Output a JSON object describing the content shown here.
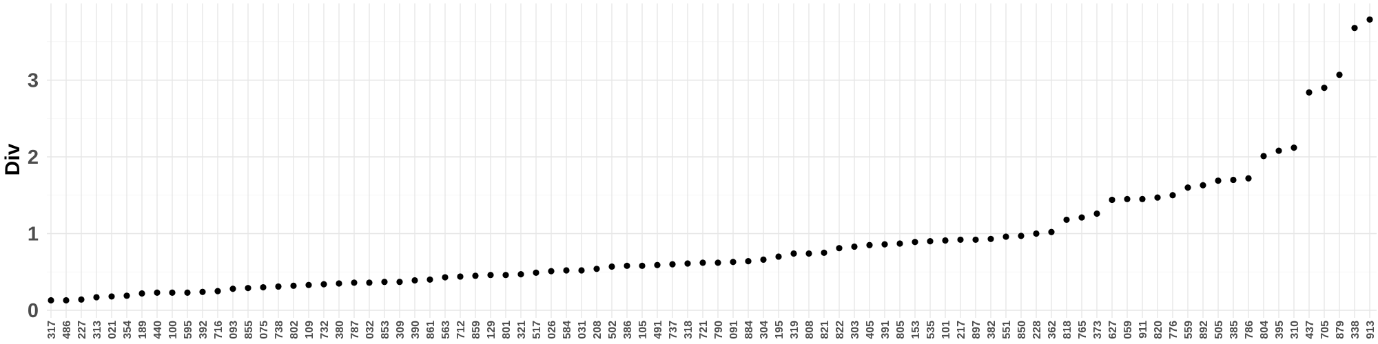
{
  "chart_data": {
    "type": "scatter",
    "title": "",
    "xlabel": "",
    "ylabel": "Div",
    "ylim": [
      0,
      4
    ],
    "yticks": [
      "0",
      "1",
      "2",
      "3"
    ],
    "grid": true,
    "legend": "none",
    "point_color": "#000000",
    "categories": [
      "317",
      "486",
      "227",
      "313",
      "021",
      "354",
      "189",
      "440",
      "100",
      "595",
      "392",
      "716",
      "093",
      "855",
      "075",
      "738",
      "802",
      "109",
      "732",
      "380",
      "787",
      "032",
      "853",
      "309",
      "390",
      "861",
      "563",
      "712",
      "859",
      "129",
      "801",
      "321",
      "517",
      "026",
      "584",
      "031",
      "208",
      "502",
      "386",
      "105",
      "491",
      "737",
      "318",
      "721",
      "790",
      "091",
      "884",
      "304",
      "195",
      "319",
      "808",
      "821",
      "822",
      "303",
      "405",
      "391",
      "805",
      "153",
      "535",
      "101",
      "217",
      "897",
      "382",
      "551",
      "850",
      "228",
      "362",
      "818",
      "765",
      "373",
      "627",
      "059",
      "911",
      "820",
      "776",
      "559",
      "892",
      "505",
      "385",
      "786",
      "804",
      "395",
      "310",
      "437",
      "705",
      "879",
      "338",
      "913"
    ],
    "values": [
      0.13,
      0.13,
      0.14,
      0.17,
      0.18,
      0.19,
      0.22,
      0.23,
      0.23,
      0.23,
      0.24,
      0.25,
      0.28,
      0.29,
      0.3,
      0.31,
      0.32,
      0.33,
      0.34,
      0.35,
      0.36,
      0.36,
      0.37,
      0.37,
      0.39,
      0.4,
      0.43,
      0.44,
      0.45,
      0.46,
      0.46,
      0.47,
      0.49,
      0.51,
      0.52,
      0.52,
      0.54,
      0.57,
      0.58,
      0.58,
      0.59,
      0.6,
      0.61,
      0.62,
      0.62,
      0.63,
      0.64,
      0.66,
      0.7,
      0.74,
      0.74,
      0.75,
      0.81,
      0.83,
      0.85,
      0.86,
      0.87,
      0.89,
      0.9,
      0.91,
      0.92,
      0.92,
      0.93,
      0.96,
      0.97,
      1.0,
      1.02,
      1.18,
      1.21,
      1.26,
      1.44,
      1.45,
      1.45,
      1.47,
      1.5,
      1.6,
      1.63,
      1.69,
      1.7,
      1.72,
      2.01,
      2.08,
      2.12,
      2.84,
      2.9,
      3.07,
      3.68,
      3.79
    ]
  }
}
